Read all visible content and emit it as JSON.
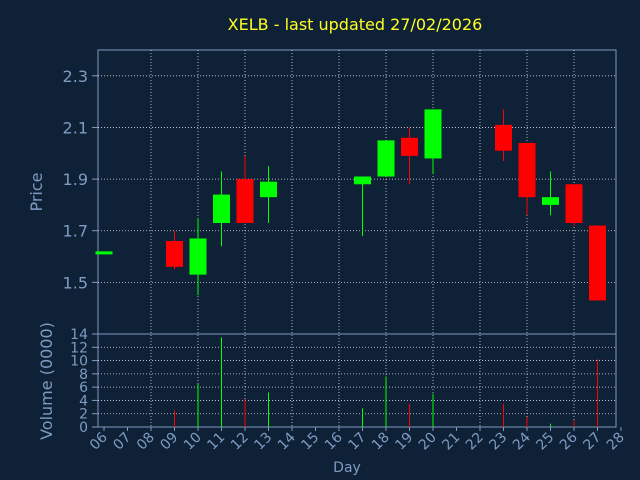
{
  "chart_data": {
    "type": "candlestick",
    "title": "XELB - last updated 27/02/2026",
    "ylabel": "Price",
    "volume_label": "Volume (0000)",
    "xlabel": "Day",
    "ylim": [
      1.3,
      2.4
    ],
    "price_ticks": [
      "1.5",
      "1.7",
      "1.9",
      "2.1",
      "2.3"
    ],
    "volume_ylim": [
      0,
      14
    ],
    "volume_ticks": [
      "0",
      "2",
      "4",
      "6",
      "8",
      "10",
      "12",
      "14"
    ],
    "days": [
      "06",
      "07",
      "08",
      "09",
      "10",
      "11",
      "12",
      "13",
      "14",
      "15",
      "16",
      "17",
      "18",
      "19",
      "20",
      "21",
      "22",
      "23",
      "24",
      "25",
      "26",
      "27",
      "28"
    ],
    "candles": [
      {
        "day": "06",
        "open": 1.61,
        "high": 1.62,
        "low": 1.61,
        "close": 1.62,
        "volume": 0
      },
      {
        "day": "09",
        "open": 1.66,
        "high": 1.7,
        "low": 1.55,
        "close": 1.56,
        "volume": 2.5
      },
      {
        "day": "10",
        "open": 1.53,
        "high": 1.75,
        "low": 1.45,
        "close": 1.67,
        "volume": 6.5
      },
      {
        "day": "11",
        "open": 1.73,
        "high": 1.93,
        "low": 1.64,
        "close": 1.84,
        "volume": 13.5
      },
      {
        "day": "12",
        "open": 1.9,
        "high": 1.99,
        "low": 1.73,
        "close": 1.73,
        "volume": 4.2
      },
      {
        "day": "13",
        "open": 1.83,
        "high": 1.95,
        "low": 1.73,
        "close": 1.89,
        "volume": 5.2
      },
      {
        "day": "17",
        "open": 1.88,
        "high": 1.91,
        "low": 1.68,
        "close": 1.91,
        "volume": 2.8
      },
      {
        "day": "18",
        "open": 1.91,
        "high": 2.05,
        "low": 1.91,
        "close": 2.05,
        "volume": 7.6
      },
      {
        "day": "19",
        "open": 2.06,
        "high": 2.1,
        "low": 1.88,
        "close": 1.99,
        "volume": 3.5
      },
      {
        "day": "20",
        "open": 1.98,
        "high": 2.17,
        "low": 1.92,
        "close": 2.17,
        "volume": 5.0
      },
      {
        "day": "23",
        "open": 2.11,
        "high": 2.17,
        "low": 1.97,
        "close": 2.01,
        "volume": 3.5
      },
      {
        "day": "24",
        "open": 2.04,
        "high": 2.04,
        "low": 1.76,
        "close": 1.83,
        "volume": 1.5
      },
      {
        "day": "25",
        "open": 1.8,
        "high": 1.93,
        "low": 1.76,
        "close": 1.83,
        "volume": 0.5
      },
      {
        "day": "26",
        "open": 1.88,
        "high": 1.88,
        "low": 1.72,
        "close": 1.73,
        "volume": 1.0
      },
      {
        "day": "27",
        "open": 1.72,
        "high": 1.72,
        "low": 1.43,
        "close": 1.43,
        "volume": 10.2
      }
    ],
    "grid": true,
    "colors": {
      "background": "#0f2136",
      "plot_border": "#7d9cc2",
      "grid": "#dddddd",
      "up": "#00ff00",
      "down": "#ff0000",
      "text": "#7d9cc2",
      "title": "#ffff22"
    }
  }
}
